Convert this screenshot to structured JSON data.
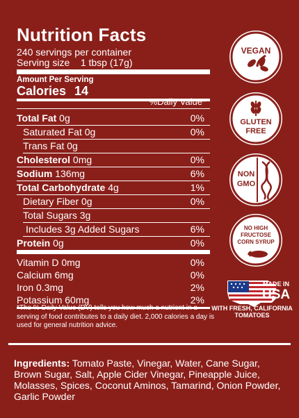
{
  "title": "Nutrition Facts",
  "servings": "240 servings per container",
  "serving_size": "Serving size    1 tbsp (17g)",
  "amount_per_serving": "Amount Per Serving",
  "calories_label": "Calories",
  "calories_value": "14",
  "dv_header": "%Daily Value*",
  "nutrients": [
    {
      "bold": "Total Fat",
      "rest": " 0g",
      "pct": "0%"
    },
    {
      "bold": "",
      "rest": "Saturated Fat 0g",
      "pct": "0%"
    },
    {
      "bold": "",
      "rest": "Trans Fat 0g",
      "pct": ""
    },
    {
      "bold": "Cholesterol",
      "rest": " 0mg",
      "pct": "0%"
    },
    {
      "bold": "Sodium",
      "rest": " 136mg",
      "pct": "6%"
    },
    {
      "bold": "Total Carbohydrate",
      "rest": " 4g",
      "pct": "1%"
    },
    {
      "bold": "",
      "rest": "Dietary Fiber 0g",
      "pct": "0%"
    },
    {
      "bold": "",
      "rest": "Total Sugars 3g",
      "pct": ""
    },
    {
      "bold": "",
      "rest": "Includes 3g Added Sugars",
      "pct": "6%"
    },
    {
      "bold": "Protein",
      "rest": " 0g",
      "pct": "0%"
    },
    {
      "bold": "",
      "rest": "Vitamin D 0mg",
      "pct": "0%"
    },
    {
      "bold": "",
      "rest": "Calcium 6mg",
      "pct": "0%"
    },
    {
      "bold": "",
      "rest": "Iron 0.3mg",
      "pct": "2%"
    },
    {
      "bold": "",
      "rest": "Potassium 60mg",
      "pct": "2%"
    }
  ],
  "footnote": "*The % Daily Value (DV) tells you how much a nutrient in a serving of food contributes to a daily diet. 2,000 calories a day is used for general nutrition advice.",
  "ingredients_label": "Ingredients:",
  "ingredients_text": " Tomato Paste, Vinegar, Water, Cane Sugar, Brown Sugar, Salt, Apple Cider Vinegar, Pineapple Juice, Molasses, Spices, Coconut Aminos, Tamarind, Onion Powder, Garlic Powder",
  "badges": {
    "vegan": "VEGAN",
    "gluten_free_1": "GLUTEN",
    "gluten_free_2": "FREE",
    "non_gmo_1": "NON",
    "non_gmo_2": "GMO",
    "hfcs_1": "NO HIGH",
    "hfcs_2": "FRUCTOSE",
    "hfcs_3": "CORN SYRUP",
    "usa_made": "MADE IN",
    "usa_country": "USA",
    "usa_caption": "WITH FRESH, CALIFORNIA TOMATOES"
  },
  "colors": {
    "background": "#8a1f1a",
    "text": "#ffffff"
  }
}
